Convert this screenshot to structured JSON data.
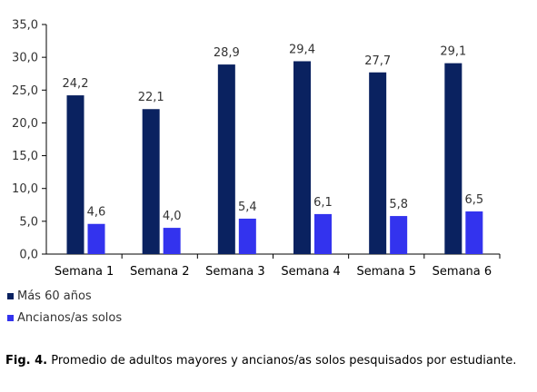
{
  "chart_data": {
    "type": "bar",
    "categories": [
      "Semana 1",
      "Semana 2",
      "Semana 3",
      "Semana 4",
      "Semana 5",
      "Semana 6"
    ],
    "series": [
      {
        "name": "Más 60 años",
        "color": "#0a2260",
        "values": [
          24.2,
          22.1,
          28.9,
          29.4,
          27.7,
          29.1
        ],
        "labels": [
          "24,2",
          "22,1",
          "28,9",
          "29,4",
          "27,7",
          "29,1"
        ]
      },
      {
        "name": "Ancianos/as solos",
        "color": "#3333ee",
        "values": [
          4.6,
          4.0,
          5.4,
          6.1,
          5.8,
          6.5
        ],
        "labels": [
          "4,6",
          "4,0",
          "5,4",
          "6,1",
          "5,8",
          "6,5"
        ]
      }
    ],
    "ylim": [
      0,
      35
    ],
    "yticks": [
      0,
      5,
      10,
      15,
      20,
      25,
      30,
      35
    ],
    "ytick_labels": [
      "0,0",
      "5,0",
      "10,0",
      "15,0",
      "20,0",
      "25,0",
      "30,0",
      "35,0"
    ],
    "grid": false,
    "legend_position": "bottom-left"
  },
  "caption": {
    "prefix": "Fig. 4.",
    "text": " Promedio de adultos mayores y ancianos/as solos pesquisados por estudiante."
  }
}
